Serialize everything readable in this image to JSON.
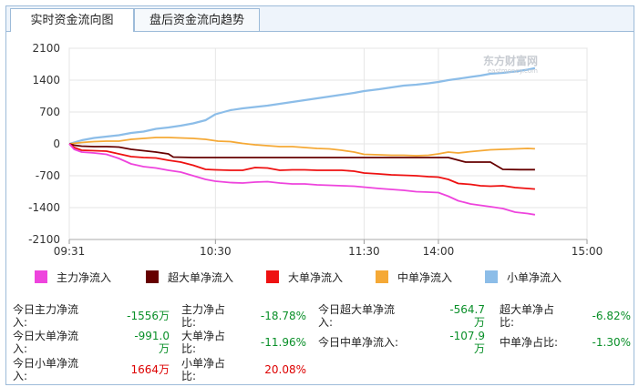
{
  "tabs": [
    {
      "label": "实时资金流向图",
      "active": true
    },
    {
      "label": "盘后资金流向趋势",
      "active": false
    }
  ],
  "watermark": {
    "text": "东方财富网",
    "sub": "eastmoney.com"
  },
  "chart_data": {
    "type": "line",
    "ylim": [
      -2100,
      2100
    ],
    "yticks": [
      2100,
      1400,
      700,
      0,
      -700,
      -1400,
      -2100
    ],
    "xticks": [
      "09:31",
      "10:30",
      "11:30",
      "14:00",
      "15:00"
    ],
    "xtick_minutes": [
      0,
      59,
      119,
      149,
      209
    ],
    "grid": true,
    "legend_position": "bottom",
    "series": [
      {
        "name": "主力净流入",
        "color": "#ee44dd",
        "x": [
          0,
          2,
          5,
          10,
          15,
          20,
          25,
          30,
          35,
          40,
          45,
          50,
          55,
          59,
          65,
          70,
          75,
          80,
          85,
          90,
          95,
          100,
          105,
          110,
          115,
          119,
          125,
          130,
          135,
          140,
          145,
          149,
          153,
          157,
          162,
          166,
          170,
          175,
          180,
          185,
          188
        ],
        "y": [
          0,
          -120,
          -180,
          -200,
          -230,
          -320,
          -440,
          -500,
          -530,
          -580,
          -620,
          -700,
          -780,
          -820,
          -850,
          -860,
          -840,
          -830,
          -860,
          -880,
          -880,
          -900,
          -910,
          -920,
          -930,
          -950,
          -980,
          -1000,
          -1020,
          -1050,
          -1060,
          -1070,
          -1150,
          -1250,
          -1320,
          -1350,
          -1380,
          -1420,
          -1500,
          -1530,
          -1556
        ]
      },
      {
        "name": "超大单净流入",
        "color": "#660000",
        "x": [
          0,
          2,
          5,
          10,
          15,
          20,
          25,
          35,
          40,
          42,
          50,
          60,
          70,
          80,
          90,
          100,
          110,
          119,
          130,
          140,
          145,
          149,
          153,
          160,
          167,
          170,
          175,
          182,
          188
        ],
        "y": [
          0,
          -30,
          -50,
          -60,
          -60,
          -70,
          -120,
          -180,
          -220,
          -290,
          -300,
          -300,
          -300,
          -300,
          -300,
          -300,
          -300,
          -300,
          -300,
          -300,
          -300,
          -300,
          -300,
          -400,
          -400,
          -400,
          -560,
          -565,
          -565
        ]
      },
      {
        "name": "大单净流入",
        "color": "#ee1111",
        "x": [
          0,
          2,
          5,
          10,
          15,
          20,
          25,
          30,
          35,
          40,
          45,
          50,
          55,
          59,
          65,
          70,
          75,
          80,
          85,
          90,
          95,
          100,
          105,
          110,
          115,
          119,
          125,
          130,
          135,
          140,
          145,
          149,
          153,
          157,
          162,
          166,
          170,
          175,
          180,
          185,
          188
        ],
        "y": [
          0,
          -80,
          -140,
          -150,
          -160,
          -220,
          -280,
          -300,
          -310,
          -360,
          -400,
          -470,
          -560,
          -570,
          -580,
          -580,
          -520,
          -530,
          -580,
          -570,
          -570,
          -580,
          -580,
          -580,
          -600,
          -640,
          -660,
          -680,
          -690,
          -700,
          -720,
          -730,
          -780,
          -870,
          -890,
          -920,
          -930,
          -920,
          -960,
          -980,
          -991
        ]
      },
      {
        "name": "中单净流入",
        "color": "#f5a936",
        "x": [
          0,
          5,
          10,
          15,
          20,
          25,
          30,
          35,
          40,
          45,
          50,
          55,
          60,
          65,
          70,
          75,
          80,
          85,
          90,
          95,
          100,
          105,
          110,
          115,
          119,
          125,
          130,
          135,
          140,
          145,
          149,
          153,
          157,
          162,
          166,
          170,
          175,
          180,
          185,
          188
        ],
        "y": [
          0,
          30,
          50,
          60,
          60,
          100,
          120,
          140,
          140,
          130,
          120,
          100,
          60,
          50,
          10,
          -20,
          -40,
          -60,
          -60,
          -80,
          -100,
          -110,
          -140,
          -180,
          -230,
          -240,
          -250,
          -250,
          -260,
          -250,
          -220,
          -180,
          -200,
          -170,
          -150,
          -130,
          -120,
          -110,
          -100,
          -108
        ]
      },
      {
        "name": "小单净流入",
        "color": "#8cbde8",
        "x": [
          0,
          5,
          10,
          15,
          20,
          25,
          30,
          35,
          40,
          45,
          50,
          55,
          59,
          65,
          70,
          75,
          80,
          85,
          90,
          95,
          100,
          105,
          110,
          115,
          119,
          125,
          130,
          135,
          140,
          145,
          149,
          153,
          157,
          162,
          166,
          170,
          175,
          180,
          185,
          188
        ],
        "y": [
          0,
          80,
          130,
          160,
          190,
          240,
          270,
          330,
          360,
          400,
          450,
          520,
          650,
          740,
          780,
          810,
          840,
          880,
          920,
          960,
          1000,
          1040,
          1080,
          1120,
          1160,
          1200,
          1240,
          1280,
          1300,
          1330,
          1360,
          1400,
          1430,
          1470,
          1500,
          1540,
          1560,
          1590,
          1630,
          1664
        ]
      }
    ]
  },
  "legend": [
    {
      "label": "主力净流入",
      "color": "#ee44dd"
    },
    {
      "label": "超大单净流入",
      "color": "#660000"
    },
    {
      "label": "大单净流入",
      "color": "#ee1111"
    },
    {
      "label": "中单净流入",
      "color": "#f5a936"
    },
    {
      "label": "小单净流入",
      "color": "#8cbde8"
    }
  ],
  "stats": {
    "main_in_l1": "今日主力净流",
    "main_in_l2": "入:",
    "main_in_val": "-1556万",
    "main_ratio_l1": "主力净占",
    "main_ratio_l2": "比:",
    "main_ratio_val": "-18.78%",
    "super_in_l1": "今日超大单净流",
    "super_in_l2": "入:",
    "super_in_v1": "-564.7",
    "super_in_v2": "万",
    "super_ratio_l1": "超大单净占",
    "super_ratio_l2": "比:",
    "super_ratio_val": "-6.82%",
    "big_in_l1": "今日大单净流",
    "big_in_l2": "入:",
    "big_in_v1": "-991.0",
    "big_in_v2": "万",
    "big_ratio_l1": "大单净占",
    "big_ratio_l2": "比:",
    "big_ratio_val": "-11.96%",
    "mid_in_l1": "今日中单净流入:",
    "mid_in_v1": "-107.9",
    "mid_in_v2": "万",
    "mid_ratio_l1": "中单净占比:",
    "mid_ratio_val": "-1.30%",
    "small_in_l1": "今日小单净流",
    "small_in_l2": "入:",
    "small_in_val": "1664万",
    "small_ratio_l1": "小单净占",
    "small_ratio_l2": "比:",
    "small_ratio_val": "20.08%"
  }
}
